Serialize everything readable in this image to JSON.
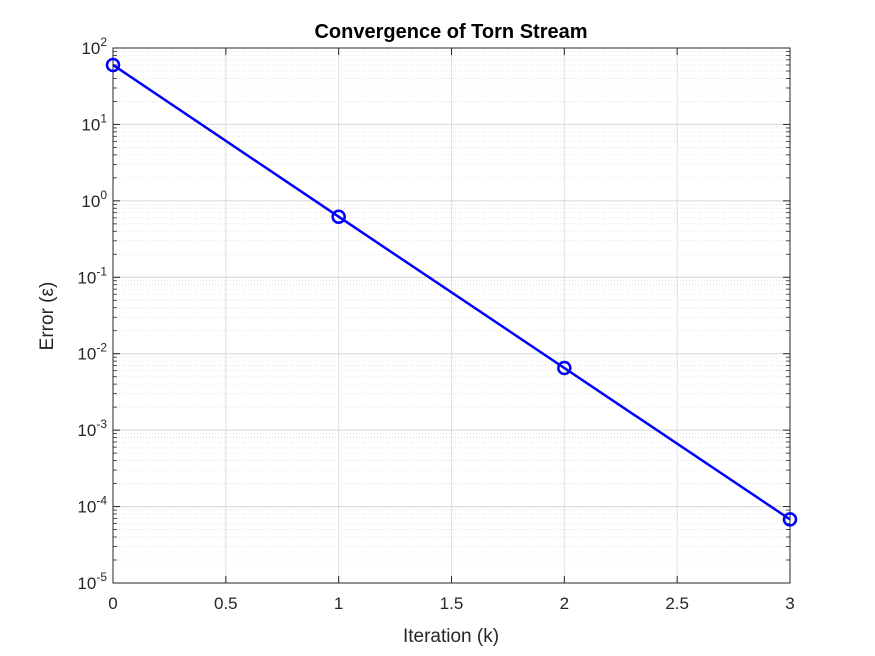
{
  "chart_data": {
    "type": "line",
    "title": "Convergence of Torn Stream",
    "xlabel": "Iteration (k)",
    "ylabel": "Error (ε)",
    "xlim": [
      0,
      3
    ],
    "ylim": [
      1e-05,
      100
    ],
    "yscale": "log",
    "grid": true,
    "minor_grid": true,
    "x_ticks": [
      0,
      0.5,
      1,
      1.5,
      2,
      2.5,
      3
    ],
    "x_tick_labels": [
      "0",
      "0.5",
      "1",
      "1.5",
      "2",
      "2.5",
      "3"
    ],
    "y_tick_exponents": [
      -5,
      -4,
      -3,
      -2,
      -1,
      0,
      1,
      2
    ],
    "y_tick_base": "10",
    "series": [
      {
        "color": "#0000ff",
        "marker": "circle",
        "x": [
          0,
          1,
          2,
          3
        ],
        "y": [
          60,
          0.62,
          0.0065,
          6.8e-05
        ]
      }
    ]
  }
}
